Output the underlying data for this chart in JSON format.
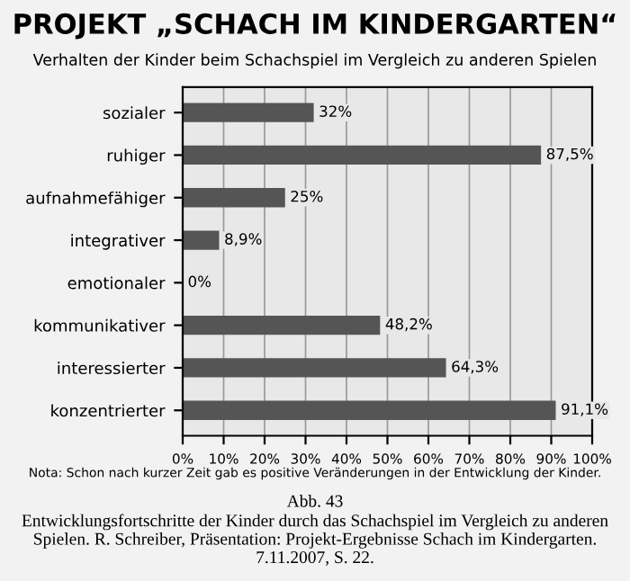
{
  "chart_data": {
    "type": "bar",
    "orientation": "horizontal",
    "title": "PROJEKT „SCHACH IM KINDERGARTEN“",
    "subtitle": "Verhalten der Kinder beim Schachspiel im Vergleich zu anderen Spielen",
    "categories": [
      "sozialer",
      "ruhiger",
      "aufnahmefähiger",
      "integrativer",
      "emotionaler",
      "kommunikativer",
      "interessierter",
      "konzentrierter"
    ],
    "values": [
      32,
      87.5,
      25,
      8.9,
      0,
      48.2,
      64.3,
      91.1
    ],
    "value_labels": [
      "32%",
      "87,5%",
      "25%",
      "8,9%",
      "0%",
      "48,2%",
      "64,3%",
      "91,1%"
    ],
    "color": "#555555",
    "xlim": [
      0,
      100
    ],
    "xticks": [
      {
        "value": 0,
        "label": "0%"
      },
      {
        "value": 10,
        "label": "10%"
      },
      {
        "value": 20,
        "label": "20%"
      },
      {
        "value": 30,
        "label": "30%"
      },
      {
        "value": 40,
        "label": "40%"
      },
      {
        "value": 50,
        "label": "50%"
      },
      {
        "value": 60,
        "label": "60%"
      },
      {
        "value": 70,
        "label": "70%"
      },
      {
        "value": 80,
        "label": "80%"
      },
      {
        "value": 90,
        "label": "90%"
      },
      {
        "value": 100,
        "label": "100%"
      }
    ],
    "grid": "x",
    "annotations": [
      "Nota: Schon nach kurzer Zeit gab es positive Veränderungen in der Entwicklung der Kinder.",
      "Abb. 43",
      "Entwicklungsfortschritte der Kinder durch das Schachspiel im Vergleich zu anderen Spielen. R. Schreiber, Präsentation: Projekt-Ergebnisse Schach im Kindergarten. 7.11.2007, S. 22."
    ]
  }
}
